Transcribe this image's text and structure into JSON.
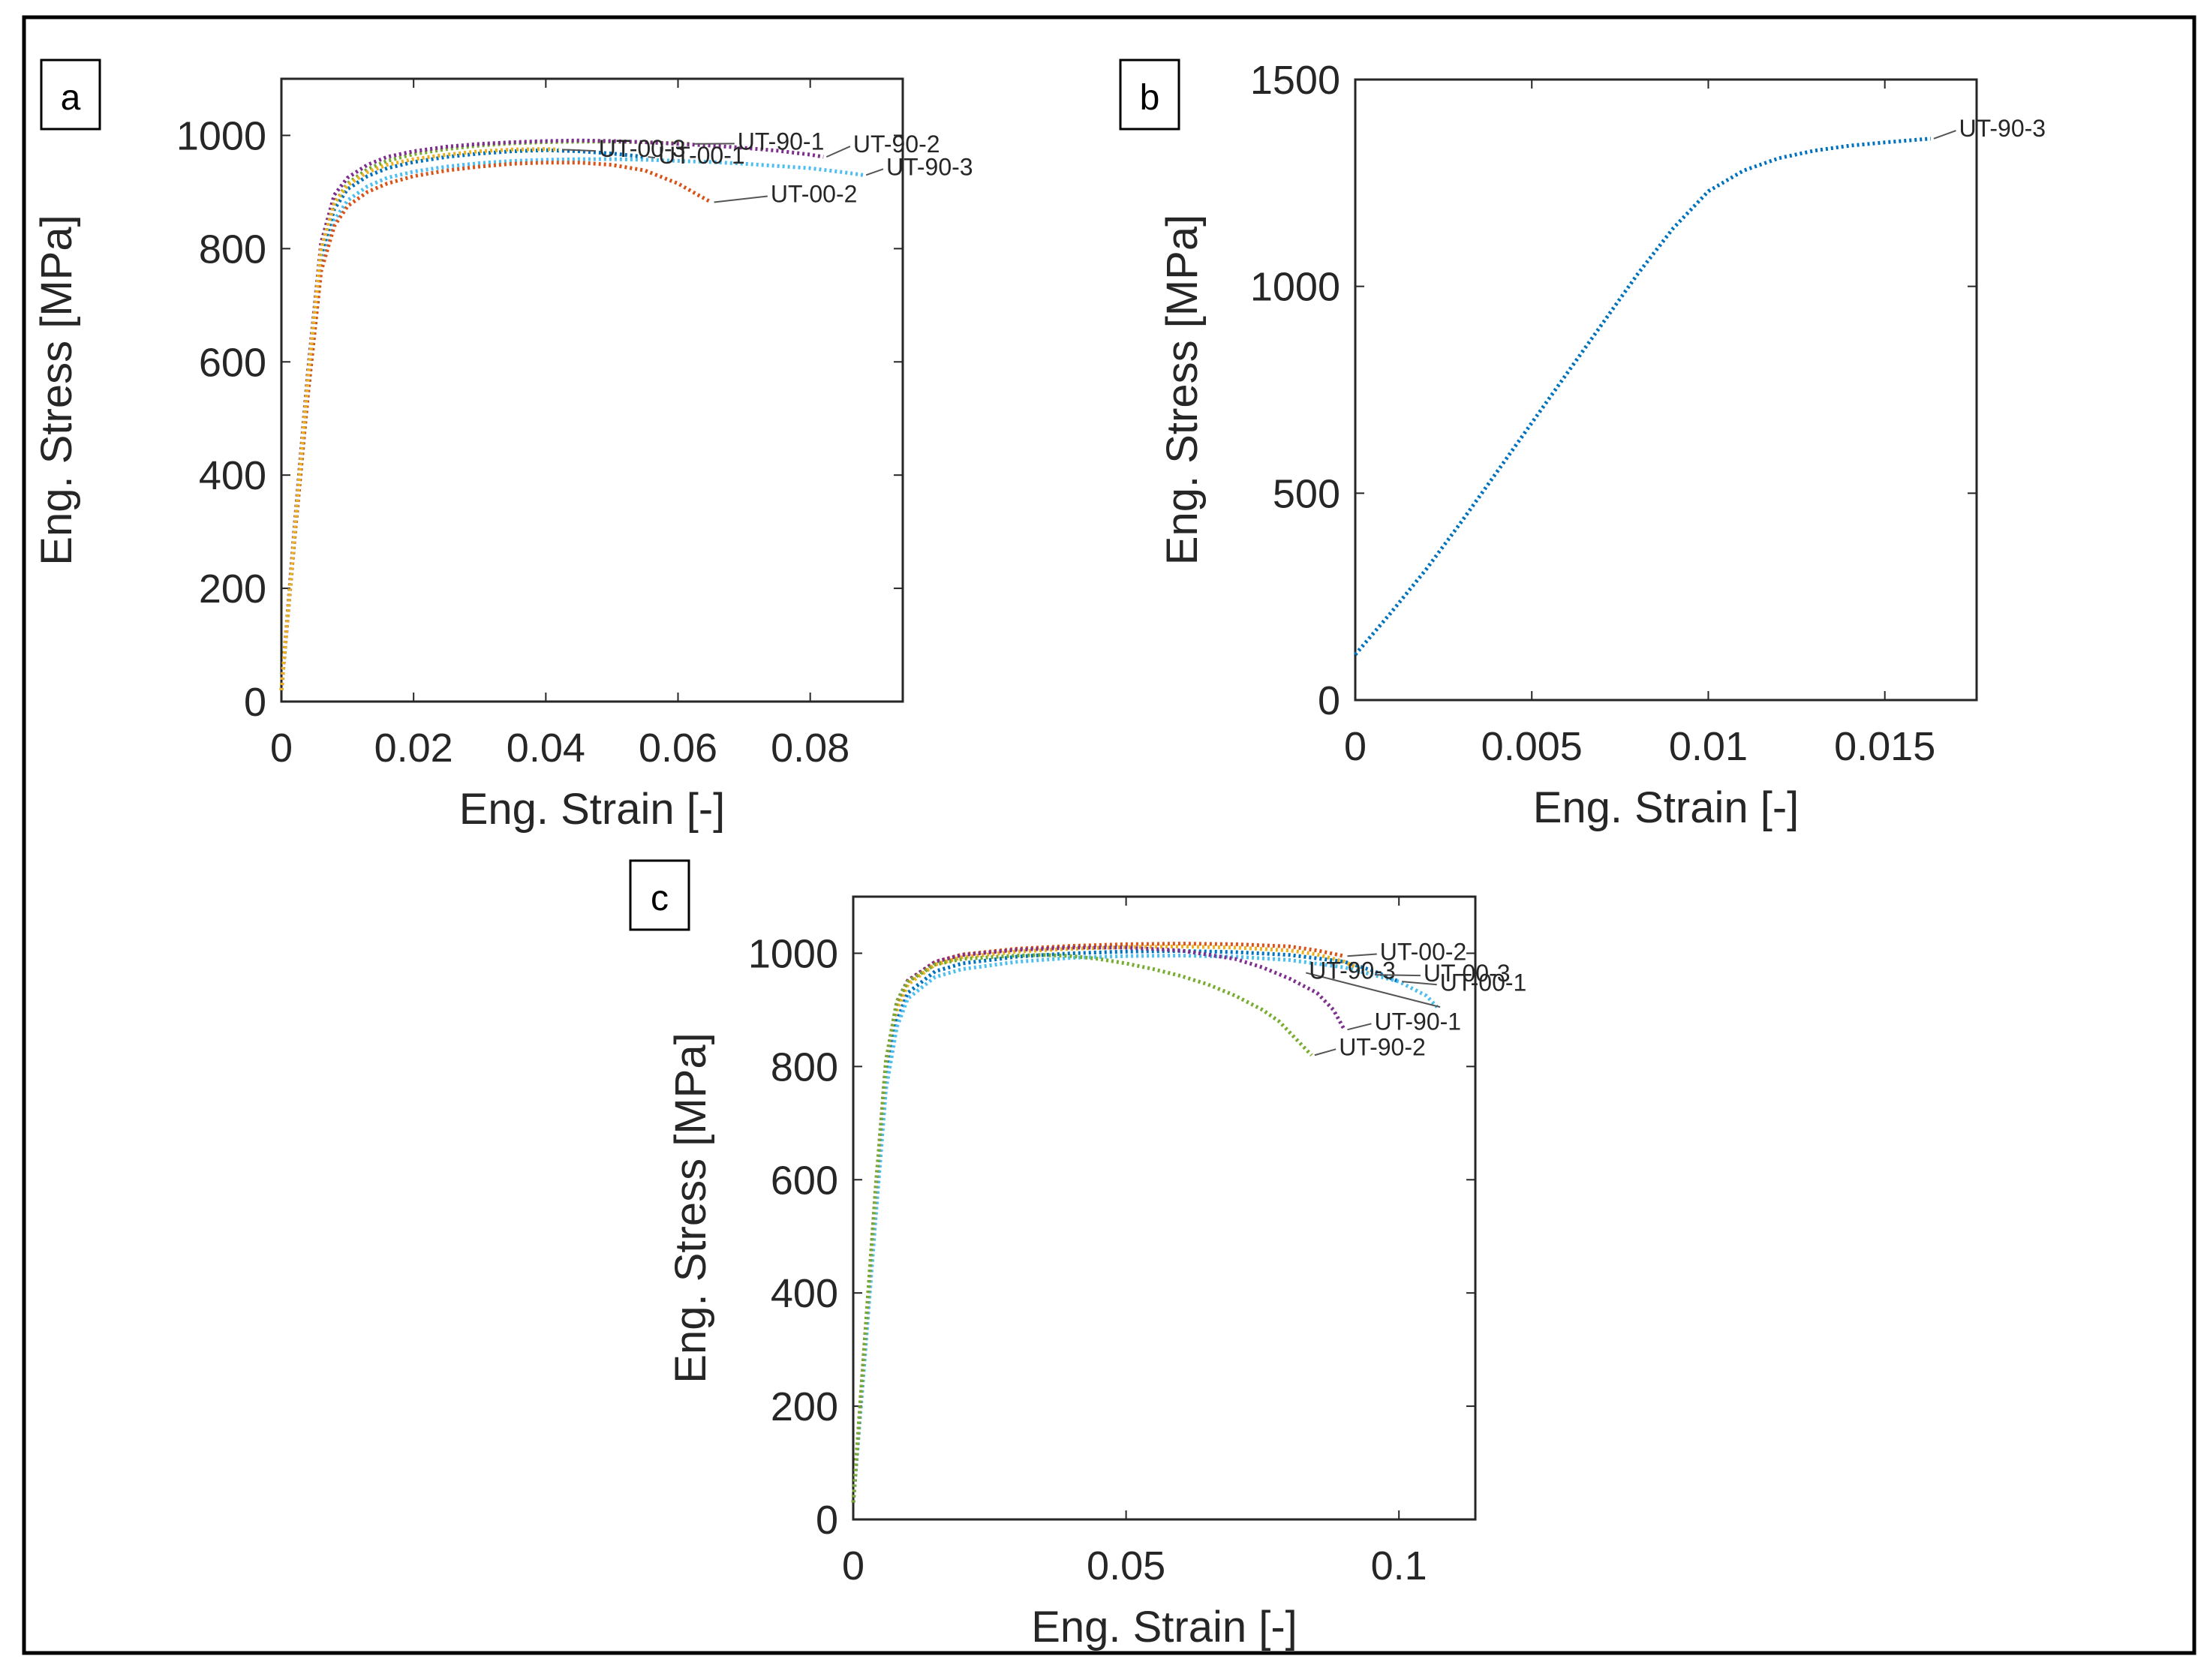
{
  "figure": {
    "border": "#000000",
    "background": "#ffffff"
  },
  "chart_data": [
    {
      "panel": "a",
      "type": "line",
      "xlabel": "Eng. Strain [-]",
      "ylabel": "Eng. Stress [MPa]",
      "xlim": [
        0,
        0.094
      ],
      "ylim": [
        0,
        1100
      ],
      "xticks": [
        0,
        0.02,
        0.04,
        0.06,
        0.08
      ],
      "xtick_labels": [
        "0",
        "0.02",
        "0.04",
        "0.06",
        "0.08"
      ],
      "yticks": [
        0,
        200,
        400,
        600,
        800,
        1000
      ],
      "ytick_labels": [
        "0",
        "200",
        "400",
        "600",
        "800",
        "1000"
      ],
      "series": [
        {
          "name": "UT-90-1",
          "color": "#77ac30",
          "x": [
            0,
            0.002,
            0.004,
            0.006,
            0.008,
            0.01,
            0.013,
            0.016,
            0.02,
            0.025,
            0.03,
            0.035,
            0.04,
            0.045,
            0.05,
            0.055,
            0.06,
            0.062
          ],
          "y": [
            20,
            300,
            560,
            790,
            880,
            915,
            940,
            955,
            967,
            976,
            982,
            986,
            988,
            989,
            989,
            988,
            986,
            985
          ]
        },
        {
          "name": "UT-90-2",
          "color": "#7e2f8e",
          "x": [
            0,
            0.002,
            0.004,
            0.006,
            0.008,
            0.01,
            0.013,
            0.016,
            0.02,
            0.025,
            0.03,
            0.035,
            0.04,
            0.045,
            0.05,
            0.055,
            0.06,
            0.065,
            0.07,
            0.075,
            0.08,
            0.082
          ],
          "y": [
            20,
            310,
            580,
            810,
            895,
            925,
            948,
            962,
            972,
            980,
            985,
            988,
            990,
            991,
            990,
            988,
            985,
            982,
            978,
            973,
            966,
            962
          ]
        },
        {
          "name": "UT-90-3",
          "color": "#4dbeee",
          "x": [
            0,
            0.002,
            0.004,
            0.006,
            0.008,
            0.01,
            0.013,
            0.016,
            0.02,
            0.025,
            0.03,
            0.035,
            0.04,
            0.045,
            0.05,
            0.055,
            0.06,
            0.065,
            0.07,
            0.075,
            0.08,
            0.085,
            0.088
          ],
          "y": [
            20,
            290,
            540,
            770,
            850,
            885,
            910,
            925,
            936,
            945,
            951,
            955,
            957,
            958,
            958,
            957,
            955,
            953,
            950,
            946,
            942,
            935,
            930
          ]
        },
        {
          "name": "UT-00-1",
          "color": "#0072bd",
          "x": [
            0,
            0.002,
            0.004,
            0.006,
            0.008,
            0.01,
            0.013,
            0.016,
            0.02,
            0.025,
            0.03,
            0.035,
            0.04,
            0.045,
            0.05,
            0.055
          ],
          "y": [
            20,
            300,
            560,
            790,
            870,
            905,
            928,
            942,
            953,
            962,
            968,
            972,
            974,
            972,
            968,
            962
          ]
        },
        {
          "name": "UT-00-2",
          "color": "#d95319",
          "x": [
            0,
            0.002,
            0.004,
            0.006,
            0.008,
            0.01,
            0.013,
            0.016,
            0.02,
            0.025,
            0.03,
            0.035,
            0.04,
            0.045,
            0.05,
            0.055,
            0.06,
            0.063,
            0.065
          ],
          "y": [
            20,
            290,
            540,
            760,
            840,
            875,
            900,
            915,
            928,
            938,
            945,
            950,
            952,
            952,
            948,
            938,
            915,
            895,
            882
          ]
        },
        {
          "name": "UT-00-3",
          "color": "#edb120",
          "x": [
            0,
            0.002,
            0.004,
            0.006,
            0.008,
            0.01,
            0.013,
            0.016,
            0.02,
            0.025,
            0.03,
            0.035,
            0.04,
            0.042
          ],
          "y": [
            20,
            300,
            570,
            800,
            880,
            912,
            935,
            948,
            958,
            966,
            972,
            975,
            976,
            975
          ]
        }
      ],
      "annotations": [
        {
          "text": "UT-00-3",
          "x": 0.048,
          "y": 962
        },
        {
          "text": "UT-00-1",
          "x": 0.057,
          "y": 950
        },
        {
          "text": "UT-90-1",
          "x": 0.069,
          "y": 975
        },
        {
          "text": "UT-90-2",
          "x": 0.0865,
          "y": 970
        },
        {
          "text": "UT-90-3",
          "x": 0.0915,
          "y": 930
        },
        {
          "text": "UT-00-2",
          "x": 0.074,
          "y": 882
        }
      ]
    },
    {
      "panel": "b",
      "type": "line",
      "xlabel": "Eng. Strain [-]",
      "ylabel": "Eng. Stress [MPa]",
      "xlim": [
        0,
        0.0176
      ],
      "ylim": [
        0,
        1500
      ],
      "xticks": [
        0,
        0.005,
        0.01,
        0.015
      ],
      "xtick_labels": [
        "0",
        "0.005",
        "0.01",
        "0.015"
      ],
      "yticks": [
        0,
        500,
        1000,
        1500
      ],
      "ytick_labels": [
        "0",
        "500",
        "1000",
        "1500"
      ],
      "series": [
        {
          "name": "UT-90-3",
          "color": "#0072bd",
          "x": [
            0,
            0.001,
            0.002,
            0.003,
            0.004,
            0.005,
            0.006,
            0.007,
            0.008,
            0.009,
            0.01,
            0.011,
            0.012,
            0.013,
            0.014,
            0.015,
            0.016,
            0.0163
          ],
          "y": [
            110,
            210,
            315,
            430,
            550,
            670,
            790,
            910,
            1030,
            1140,
            1230,
            1280,
            1310,
            1328,
            1340,
            1348,
            1355,
            1357
          ]
        }
      ],
      "annotations": [
        {
          "text": "UT-90-3",
          "x": 0.0171,
          "y": 1362
        }
      ]
    },
    {
      "panel": "c",
      "type": "line",
      "xlabel": "Eng. Strain [-]",
      "ylabel": "Eng. Stress [MPa]",
      "xlim": [
        0,
        0.114
      ],
      "ylim": [
        0,
        1100
      ],
      "xticks": [
        0,
        0.05,
        0.1
      ],
      "xtick_labels": [
        "0",
        "0.05",
        "0.1"
      ],
      "yticks": [
        0,
        200,
        400,
        600,
        800,
        1000
      ],
      "ytick_labels": [
        "0",
        "200",
        "400",
        "600",
        "800",
        "1000"
      ],
      "series": [
        {
          "name": "UT-00-2",
          "color": "#d95319",
          "x": [
            0,
            0.002,
            0.004,
            0.006,
            0.008,
            0.01,
            0.015,
            0.02,
            0.03,
            0.04,
            0.05,
            0.06,
            0.07,
            0.08,
            0.085,
            0.09
          ],
          "y": [
            30,
            300,
            560,
            800,
            910,
            950,
            985,
            998,
            1008,
            1013,
            1016,
            1017,
            1016,
            1012,
            1005,
            995
          ]
        },
        {
          "name": "UT-00-3",
          "color": "#edb120",
          "x": [
            0,
            0.002,
            0.004,
            0.006,
            0.008,
            0.01,
            0.015,
            0.02,
            0.03,
            0.04,
            0.05,
            0.06,
            0.07,
            0.08,
            0.085,
            0.09,
            0.095
          ],
          "y": [
            30,
            290,
            550,
            790,
            900,
            945,
            980,
            993,
            1003,
            1008,
            1011,
            1012,
            1010,
            1005,
            998,
            985,
            962
          ]
        },
        {
          "name": "UT-00-1",
          "color": "#0072bd",
          "x": [
            0,
            0.002,
            0.004,
            0.006,
            0.008,
            0.01,
            0.015,
            0.02,
            0.03,
            0.04,
            0.05,
            0.06,
            0.07,
            0.08,
            0.09,
            0.095,
            0.1
          ],
          "y": [
            30,
            280,
            530,
            770,
            880,
            930,
            968,
            982,
            994,
            1000,
            1003,
            1004,
            1002,
            997,
            985,
            970,
            950
          ]
        },
        {
          "name": "UT-90-3",
          "color": "#4dbeee",
          "x": [
            0,
            0.002,
            0.004,
            0.006,
            0.008,
            0.01,
            0.015,
            0.02,
            0.03,
            0.04,
            0.05,
            0.06,
            0.07,
            0.08,
            0.09,
            0.1,
            0.105,
            0.107
          ],
          "y": [
            30,
            270,
            520,
            760,
            870,
            920,
            958,
            972,
            985,
            992,
            995,
            996,
            994,
            988,
            975,
            950,
            925,
            905
          ]
        },
        {
          "name": "UT-90-1",
          "color": "#7e2f8e",
          "x": [
            0,
            0.002,
            0.004,
            0.006,
            0.008,
            0.01,
            0.015,
            0.02,
            0.03,
            0.04,
            0.05,
            0.06,
            0.07,
            0.075,
            0.08,
            0.085,
            0.088,
            0.09
          ],
          "y": [
            30,
            300,
            570,
            810,
            915,
            952,
            985,
            997,
            1006,
            1010,
            1010,
            1005,
            990,
            975,
            955,
            930,
            900,
            865
          ]
        },
        {
          "name": "UT-90-2",
          "color": "#77ac30",
          "x": [
            0,
            0.002,
            0.004,
            0.006,
            0.008,
            0.01,
            0.015,
            0.02,
            0.03,
            0.035,
            0.04,
            0.045,
            0.05,
            0.055,
            0.06,
            0.065,
            0.07,
            0.075,
            0.078,
            0.08,
            0.082,
            0.084
          ],
          "y": [
            30,
            300,
            570,
            810,
            915,
            950,
            980,
            990,
            996,
            997,
            995,
            990,
            982,
            972,
            960,
            945,
            925,
            900,
            880,
            860,
            840,
            820
          ]
        }
      ],
      "annotations": [
        {
          "text": "UT-00-2",
          "x": 0.0965,
          "y": 988
        },
        {
          "text": "UT-90-3",
          "x": 0.0835,
          "y": 955
        },
        {
          "text": "UT-00-3",
          "x": 0.1045,
          "y": 950
        },
        {
          "text": "UT-00-1",
          "x": 0.1075,
          "y": 934
        },
        {
          "text": "UT-90-1",
          "x": 0.0955,
          "y": 865
        },
        {
          "text": "UT-90-2",
          "x": 0.089,
          "y": 820
        }
      ]
    }
  ]
}
